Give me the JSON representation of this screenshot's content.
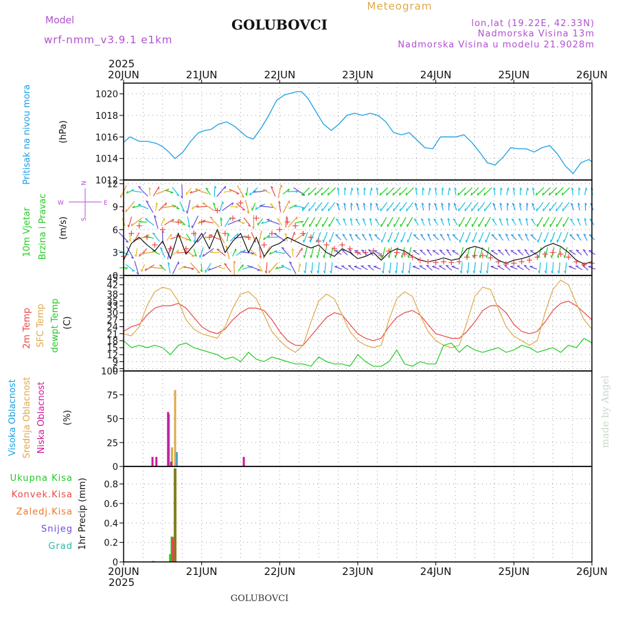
{
  "header": {
    "title": "GOLUBOVCI",
    "product": "Meteogram",
    "model_label": "Model",
    "model_name": "wrf-nmm_v3.9.1 e1km",
    "coords": "lon,lat (19.22E, 42.33N)",
    "altitude": "Nadmorska Visina 13m",
    "model_altitude": "Nadmorska Visina u modelu 21.9028m",
    "year_top": "2025",
    "year_bottom": "2025",
    "footer_title": "GOLUBOVCI",
    "watermark": "made by Angel"
  },
  "colors": {
    "pressure": "#1aa0e6",
    "temp2m": "#e84848",
    "sfc_temp": "#e0a84a",
    "dewpoint": "#22cc22",
    "high_cloud": "#1aa0e6",
    "mid_cloud": "#e0a84a",
    "low_cloud": "#d0189a",
    "total_precip": "#22cc22",
    "conv_precip": "#e84848",
    "frozen_precip": "#ee7722",
    "snow": "#6a4adc",
    "hail": "#22bbaa",
    "model": "#b050d0",
    "wind_mean": "#000000",
    "wind_gust": "#e84848"
  },
  "chart_data": [
    {
      "type": "line",
      "panel": "pressure",
      "ylabel_color": "Pritisak na nivou mora",
      "ylabel_unit": "(hPa)",
      "x_ticks": [
        "20JUN",
        "21JUN",
        "22JUN",
        "23JUN",
        "24JUN",
        "25JUN",
        "26JUN"
      ],
      "ylim": [
        1012,
        1021
      ],
      "y_ticks": [
        1012,
        1014,
        1016,
        1018,
        1020
      ],
      "grid": true,
      "series": [
        {
          "key": "pressure",
          "x": [
            0,
            0.08,
            0.2,
            0.3,
            0.42,
            0.5,
            0.58,
            0.66,
            0.76,
            0.86,
            0.96,
            1.04,
            1.12,
            1.22,
            1.32,
            1.42,
            1.5,
            1.58,
            1.66,
            1.76,
            1.86,
            1.96,
            2.06,
            2.16,
            2.22,
            2.28,
            2.36,
            2.46,
            2.56,
            2.66,
            2.76,
            2.86,
            2.96,
            3.06,
            3.16,
            3.26,
            3.36,
            3.46,
            3.56,
            3.66,
            3.76,
            3.86,
            3.96,
            4.06,
            4.16,
            4.26,
            4.36,
            4.46,
            4.56,
            4.66,
            4.76,
            4.86,
            4.96,
            5.06,
            5.16,
            5.26,
            5.36,
            5.46,
            5.56,
            5.66,
            5.76,
            5.86,
            5.96,
            6.0
          ],
          "y": [
            1015.5,
            1016.0,
            1015.6,
            1015.6,
            1015.4,
            1015.1,
            1014.6,
            1014.0,
            1014.6,
            1015.6,
            1016.4,
            1016.6,
            1016.7,
            1017.2,
            1017.4,
            1017.0,
            1016.5,
            1016.0,
            1015.8,
            1016.8,
            1018.0,
            1019.4,
            1019.9,
            1020.1,
            1020.2,
            1020.2,
            1019.6,
            1018.4,
            1017.2,
            1016.6,
            1017.2,
            1018.0,
            1018.2,
            1018.0,
            1018.2,
            1018.0,
            1017.4,
            1016.4,
            1016.2,
            1016.4,
            1015.7,
            1015.0,
            1014.9,
            1016.0,
            1016.0,
            1016.0,
            1016.2,
            1015.5,
            1014.6,
            1013.6,
            1013.4,
            1014.1,
            1015.0,
            1014.9,
            1014.9,
            1014.6,
            1015.0,
            1015.2,
            1014.4,
            1013.3,
            1012.6,
            1013.6,
            1013.9,
            1013.7
          ]
        }
      ]
    },
    {
      "type": "vector",
      "panel": "wind",
      "ylabel_color": "10m Vjetar",
      "ylabel_color2": "Brzina i Pravac",
      "ylabel_unit": "(m/s)",
      "compass": {
        "n": "N",
        "s": "S",
        "e": "E",
        "w": "W"
      },
      "ylim": [
        0,
        12.5
      ],
      "y_ticks": [
        0,
        3,
        6,
        9,
        12
      ],
      "grid": true,
      "series": [
        {
          "key": "mean",
          "name": "",
          "x": [
            0,
            0.1,
            0.2,
            0.3,
            0.4,
            0.5,
            0.6,
            0.7,
            0.8,
            0.9,
            1.0,
            1.1,
            1.2,
            1.3,
            1.4,
            1.5,
            1.6,
            1.7,
            1.8,
            1.9,
            2.0,
            2.1,
            2.2,
            2.3,
            2.4,
            2.5,
            2.6,
            2.7,
            2.8,
            2.9,
            3.0,
            3.1,
            3.2,
            3.3,
            3.4,
            3.5,
            3.6,
            3.7,
            3.8,
            3.9,
            4.0,
            4.1,
            4.2,
            4.3,
            4.4,
            4.5,
            4.6,
            4.7,
            4.8,
            4.9,
            5.0,
            5.1,
            5.2,
            5.3,
            5.4,
            5.5,
            5.6,
            5.7,
            5.8,
            5.9,
            6.0
          ],
          "y": [
            2.0,
            4.2,
            5.0,
            4.0,
            3.2,
            4.5,
            2.2,
            5.5,
            2.8,
            4.0,
            5.5,
            3.5,
            6.0,
            3.0,
            4.5,
            5.5,
            3.0,
            5.0,
            2.5,
            3.8,
            4.2,
            5.0,
            4.5,
            4.0,
            3.6,
            4.0,
            3.0,
            2.5,
            3.5,
            3.0,
            2.2,
            2.5,
            3.0,
            2.0,
            3.0,
            3.5,
            3.2,
            2.5,
            2.0,
            1.8,
            2.0,
            2.3,
            2.0,
            2.2,
            3.5,
            3.8,
            3.5,
            2.8,
            2.0,
            1.6,
            2.0,
            2.2,
            2.5,
            3.0,
            3.8,
            4.2,
            3.8,
            3.0,
            2.0,
            1.5,
            1.8
          ]
        },
        {
          "key": "gust",
          "name": "",
          "x": [
            0,
            0.1,
            0.2,
            0.3,
            0.4,
            0.5,
            0.6,
            0.7,
            0.8,
            0.9,
            1.0,
            1.1,
            1.2,
            1.3,
            1.4,
            1.5,
            1.6,
            1.7,
            1.8,
            1.9,
            2.0,
            2.1,
            2.2,
            2.3,
            2.4,
            2.5,
            2.6,
            2.7,
            2.8,
            2.9,
            3.0,
            3.1,
            3.2,
            3.3,
            3.4,
            3.5,
            3.6,
            3.7,
            3.8,
            3.9,
            4.0,
            4.1,
            4.2,
            4.3,
            4.4,
            4.5,
            4.6,
            4.7,
            4.8,
            4.9,
            5.0,
            5.1,
            5.2,
            5.3,
            5.4,
            5.5,
            5.6,
            5.7,
            5.8,
            5.9,
            6.0
          ],
          "y": [
            2.5,
            5.5,
            6.5,
            5.0,
            4.0,
            6.0,
            3.5,
            7.0,
            3.5,
            5.5,
            7.0,
            5.0,
            8.5,
            5.5,
            7.5,
            9.5,
            5.0,
            7.5,
            4.0,
            5.5,
            6.0,
            7.0,
            6.5,
            5.5,
            5.0,
            4.5,
            4.0,
            3.5,
            4.0,
            3.5,
            3.0,
            3.0,
            3.2,
            2.6,
            3.2,
            3.0,
            2.8,
            2.4,
            2.0,
            1.8,
            1.7,
            1.8,
            1.7,
            1.8,
            2.4,
            2.6,
            2.6,
            2.3,
            1.8,
            1.5,
            1.6,
            1.8,
            2.0,
            2.4,
            2.8,
            3.0,
            2.8,
            2.4,
            1.8,
            1.4,
            1.6
          ]
        }
      ]
    },
    {
      "type": "line",
      "panel": "temperature",
      "ylabel_colors": [
        "2m Temp",
        "SFC Temp",
        "dewpt Temp"
      ],
      "ylabel_unit": "(C)",
      "ylim": [
        5,
        46
      ],
      "y_ticks": [
        6,
        9,
        12,
        15,
        18,
        21,
        24,
        27,
        30,
        33,
        35,
        38,
        42,
        45
      ],
      "grid": true,
      "series": [
        {
          "key": "temp2m",
          "name": "2m Temp",
          "x": [
            0,
            0.1,
            0.2,
            0.3,
            0.4,
            0.5,
            0.6,
            0.7,
            0.8,
            0.9,
            1.0,
            1.1,
            1.2,
            1.3,
            1.4,
            1.5,
            1.6,
            1.7,
            1.8,
            1.9,
            2.0,
            2.1,
            2.2,
            2.3,
            2.4,
            2.5,
            2.6,
            2.7,
            2.8,
            2.9,
            3.0,
            3.1,
            3.2,
            3.3,
            3.4,
            3.5,
            3.6,
            3.7,
            3.8,
            3.9,
            4.0,
            4.1,
            4.2,
            4.3,
            4.4,
            4.5,
            4.6,
            4.7,
            4.8,
            4.9,
            5.0,
            5.1,
            5.2,
            5.3,
            5.4,
            5.5,
            5.6,
            5.7,
            5.8,
            5.9,
            6.0
          ],
          "y": [
            22,
            24,
            25,
            29,
            32,
            33,
            33,
            34,
            32,
            28,
            24,
            22,
            21,
            23,
            27,
            30,
            32,
            32,
            31,
            27,
            22,
            18,
            16,
            16,
            20,
            24,
            28,
            30,
            29,
            25,
            21,
            19,
            18,
            19,
            24,
            28,
            30,
            31,
            29,
            25,
            21,
            20,
            19,
            19,
            22,
            26,
            31,
            33,
            33,
            30,
            25,
            22,
            21,
            22,
            26,
            31,
            34,
            35,
            33,
            30,
            27
          ]
        },
        {
          "key": "sfc_temp",
          "name": "SFC Temp",
          "x": [
            0,
            0.1,
            0.2,
            0.3,
            0.4,
            0.5,
            0.6,
            0.7,
            0.8,
            0.9,
            1.0,
            1.1,
            1.2,
            1.3,
            1.4,
            1.5,
            1.6,
            1.7,
            1.8,
            1.9,
            2.0,
            2.1,
            2.2,
            2.3,
            2.4,
            2.5,
            2.6,
            2.7,
            2.8,
            2.9,
            3.0,
            3.1,
            3.2,
            3.3,
            3.4,
            3.5,
            3.6,
            3.7,
            3.8,
            3.9,
            4.0,
            4.1,
            4.2,
            4.3,
            4.4,
            4.5,
            4.6,
            4.7,
            4.8,
            4.9,
            5.0,
            5.1,
            5.2,
            5.3,
            5.4,
            5.5,
            5.6,
            5.7,
            5.8,
            5.9,
            6.0
          ],
          "y": [
            21,
            20,
            24,
            33,
            39,
            41,
            40,
            35,
            27,
            23,
            21,
            20,
            19,
            24,
            32,
            38,
            39,
            36,
            29,
            22,
            18,
            15,
            13,
            16,
            26,
            35,
            38,
            36,
            29,
            22,
            18,
            16,
            15,
            16,
            27,
            36,
            39,
            37,
            29,
            22,
            18,
            16,
            15,
            16,
            26,
            37,
            41,
            40,
            32,
            24,
            20,
            18,
            16,
            18,
            30,
            40,
            44,
            42,
            34,
            27,
            23
          ]
        },
        {
          "key": "dewpoint",
          "name": "dewpt Temp",
          "x": [
            0,
            0.1,
            0.2,
            0.3,
            0.4,
            0.5,
            0.6,
            0.7,
            0.8,
            0.9,
            1.0,
            1.1,
            1.2,
            1.3,
            1.4,
            1.5,
            1.6,
            1.7,
            1.8,
            1.9,
            2.0,
            2.1,
            2.2,
            2.3,
            2.4,
            2.5,
            2.6,
            2.7,
            2.8,
            2.9,
            3.0,
            3.1,
            3.2,
            3.3,
            3.4,
            3.5,
            3.6,
            3.7,
            3.8,
            3.9,
            4.0,
            4.1,
            4.2,
            4.3,
            4.4,
            4.5,
            4.6,
            4.7,
            4.8,
            4.9,
            5.0,
            5.1,
            5.2,
            5.3,
            5.4,
            5.5,
            5.6,
            5.7,
            5.8,
            5.9,
            6.0
          ],
          "y": [
            18,
            15,
            16,
            15,
            16,
            15,
            12,
            16,
            17,
            15,
            14,
            13,
            12,
            10,
            11,
            9,
            13,
            10,
            9,
            11,
            10,
            9,
            8,
            8,
            7,
            11,
            9,
            8,
            8,
            7,
            12,
            9,
            7,
            7,
            9,
            14,
            8,
            7,
            9,
            8,
            8,
            16,
            17,
            13,
            16,
            14,
            13,
            14,
            15,
            13,
            14,
            16,
            15,
            13,
            14,
            15,
            13,
            16,
            15,
            19,
            17
          ]
        }
      ]
    },
    {
      "type": "bar",
      "panel": "cloud",
      "ylabel_colors": [
        "Visoka Oblacnost",
        "Srednja Oblacnost",
        "Niska Oblacnost"
      ],
      "ylabel_unit": "(%)",
      "ylim": [
        0,
        100
      ],
      "y_ticks": [
        0,
        25,
        50,
        75,
        100
      ],
      "grid": true,
      "series": [
        {
          "key": "high_cloud",
          "name": "Visoka Oblacnost",
          "x": [
            0.58,
            0.68
          ],
          "values": [
            55,
            15
          ]
        },
        {
          "key": "mid_cloud",
          "name": "Srednja Oblacnost",
          "x": [
            0.62,
            0.66
          ],
          "values": [
            20,
            80
          ]
        },
        {
          "key": "low_cloud",
          "name": "Niska Oblacnost",
          "x": [
            0.37,
            0.42,
            0.57,
            0.61,
            1.54
          ],
          "values": [
            10,
            10,
            57,
            5,
            10
          ]
        }
      ]
    },
    {
      "type": "bar",
      "panel": "precip",
      "ylabel_colors": [
        "Ukupna Kisa",
        "Konvek.Kisa",
        "Zaledj.Kisa",
        "Snijeg",
        "Grad"
      ],
      "ylabel_unit": "1hr Precip (mm)",
      "ylim": [
        0,
        0.98
      ],
      "y_ticks": [
        0,
        0.2,
        0.4,
        0.6,
        0.8
      ],
      "grid": true,
      "series": [
        {
          "key": "total_precip",
          "name": "Ukupna Kisa",
          "x": [
            0.38,
            0.6,
            0.62,
            0.66
          ],
          "values": [
            0.01,
            0.08,
            0.26,
            0.96
          ]
        },
        {
          "key": "conv_precip",
          "name": "Konvek.Kisa",
          "x": [
            0.63
          ],
          "values": [
            0.25
          ]
        }
      ]
    }
  ]
}
